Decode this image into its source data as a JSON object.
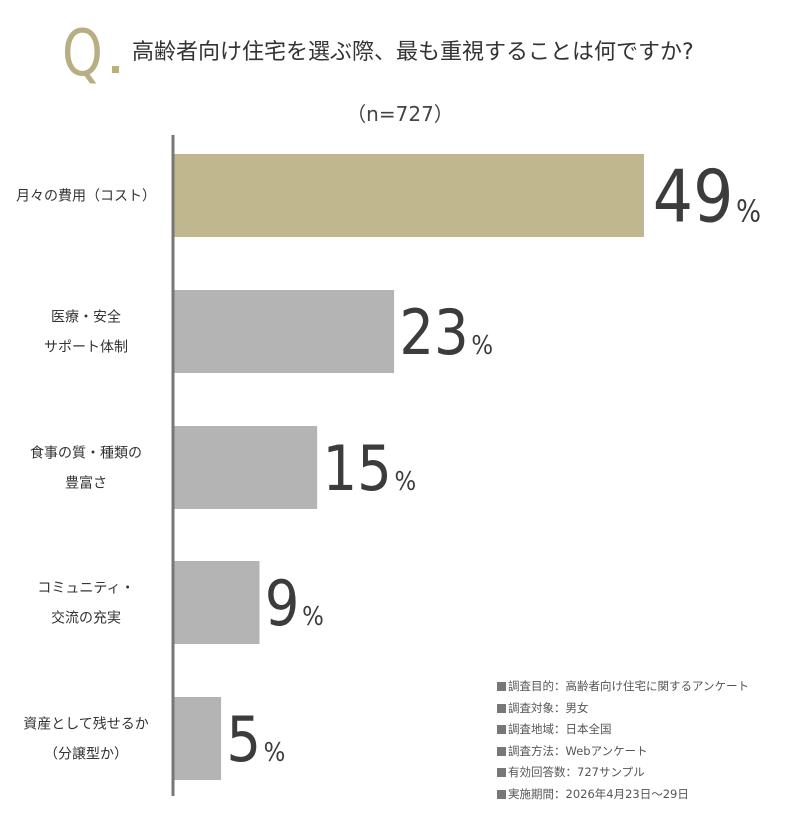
{
  "question_mark": "Q",
  "title": "高齢者向け住宅を選ぶ際、最も重視することは何ですか?",
  "sample": "（n=727）",
  "chart_data": {
    "type": "bar",
    "orientation": "horizontal",
    "categories": [
      [
        "月々の費用（コスト）"
      ],
      [
        "医療・安全",
        "サポート体制"
      ],
      [
        "食事の質・種類の",
        "豊富さ"
      ],
      [
        "コミュニティ・",
        "交流の充実"
      ],
      [
        "資産として残せるか",
        "（分譲型か）"
      ]
    ],
    "values": [
      49,
      23,
      15,
      9,
      5
    ],
    "value_suffix": "%",
    "xlim": [
      0,
      49
    ],
    "grid": false,
    "highlight_color": "#c1b78e",
    "bar_color": "#b4b4b4",
    "axis_color": "#777777"
  },
  "notes": [
    "調査目的：高齢者向け住宅に関するアンケート",
    "調査対象：男女",
    "調査地域：日本全国",
    "調査方法：Webアンケート",
    "有効回答数：727サンプル",
    "実施期間：2026年4月23日～29日"
  ]
}
